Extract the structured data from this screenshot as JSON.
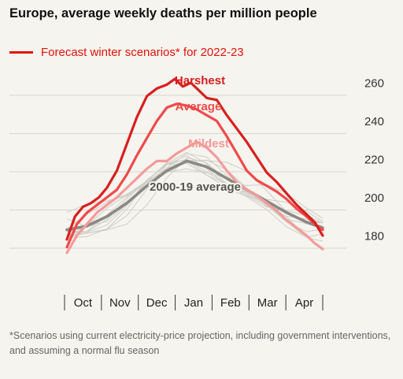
{
  "chart_data": {
    "type": "line",
    "title": "Europe, average weekly deaths per million people",
    "legend": "Forecast winter scenarios* for 2022-23",
    "footnote": "*Scenarios using current electricity-price projection, including government interventions, and assuming a normal flu season",
    "x_ticks": [
      "Oct",
      "Nov",
      "Dec",
      "Jan",
      "Feb",
      "Mar",
      "Apr"
    ],
    "ylim": [
      165,
      265
    ],
    "y_ticks": [
      180,
      200,
      220,
      240,
      260
    ],
    "grid": true,
    "series": [
      {
        "name": "Harshest",
        "color": "#d7201f",
        "x": [
          0,
          0.2,
          0.4,
          0.6,
          0.8,
          1.0,
          1.25,
          1.5,
          1.75,
          2.0,
          2.25,
          2.5,
          2.7,
          2.9,
          3.1,
          3.3,
          3.5,
          3.75,
          4.0,
          4.25,
          4.5,
          4.75,
          5.0,
          5.25,
          5.5,
          5.75,
          6.0,
          6.2,
          6.4
        ],
        "values": [
          178,
          190,
          195,
          197,
          200,
          205,
          214,
          228,
          242,
          253,
          257,
          259,
          262,
          258,
          260,
          256,
          252,
          251,
          243,
          236,
          229,
          221,
          213,
          208,
          202,
          196,
          191,
          187,
          180
        ]
      },
      {
        "name": "Average",
        "color": "#ef4a4a",
        "x": [
          0,
          0.25,
          0.5,
          0.75,
          1.0,
          1.25,
          1.5,
          1.75,
          2.0,
          2.25,
          2.5,
          2.75,
          3.0,
          3.25,
          3.5,
          3.75,
          4.0,
          4.25,
          4.5,
          4.75,
          5.0,
          5.25,
          5.5,
          5.75,
          6.0,
          6.2,
          6.4
        ],
        "values": [
          174,
          186,
          192,
          196,
          200,
          204,
          212,
          222,
          231,
          240,
          247,
          249,
          248,
          246,
          243,
          240,
          232,
          223,
          214,
          209,
          206,
          203,
          199,
          194,
          190,
          186,
          183
        ]
      },
      {
        "name": "Mildest",
        "color": "#f39b9a",
        "x": [
          0,
          0.25,
          0.5,
          0.75,
          1.0,
          1.25,
          1.5,
          1.75,
          2.0,
          2.25,
          2.5,
          2.75,
          3.0,
          3.25,
          3.5,
          3.75,
          4.0,
          4.25,
          4.5,
          4.75,
          5.0,
          5.25,
          5.5,
          5.75,
          6.0,
          6.2,
          6.4
        ],
        "values": [
          171,
          180,
          186,
          192,
          196,
          200,
          205,
          210,
          215,
          219,
          219,
          223,
          226,
          229,
          226,
          221,
          214,
          208,
          204,
          201,
          197,
          193,
          188,
          184,
          180,
          176,
          173
        ]
      },
      {
        "name": "2000-19 average",
        "color": "#8a8a84",
        "x": [
          0,
          0.5,
          1.0,
          1.5,
          2.0,
          2.5,
          3.0,
          3.5,
          4.0,
          4.5,
          5.0,
          5.5,
          6.0,
          6.4
        ],
        "values": [
          183,
          185,
          190,
          197,
          206,
          214,
          219,
          216,
          210,
          204,
          198,
          192,
          187,
          184
        ]
      }
    ]
  }
}
